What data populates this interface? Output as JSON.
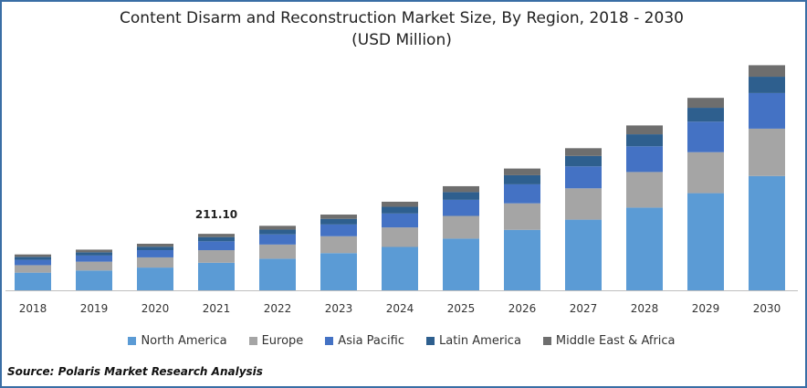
{
  "chart_data": {
    "type": "bar",
    "stacked": true,
    "title": "Content Disarm and Reconstruction Market Size, By Region, 2018 - 2030",
    "subtitle": "(USD Million)",
    "categories": [
      "2018",
      "2019",
      "2020",
      "2021",
      "2022",
      "2023",
      "2024",
      "2025",
      "2026",
      "2027",
      "2028",
      "2029",
      "2030"
    ],
    "series": [
      {
        "name": "North America",
        "color": "#5b9bd5",
        "values": [
          66,
          74,
          85,
          103,
          118,
          139,
          162,
          193,
          226,
          264,
          309,
          363,
          427
        ]
      },
      {
        "name": "Europe",
        "color": "#a5a5a5",
        "values": [
          28,
          33,
          38,
          47,
          53,
          63,
          73,
          85,
          99,
          117,
          133,
          153,
          177
        ]
      },
      {
        "name": "Asia Pacific",
        "color": "#4472c4",
        "values": [
          20,
          23,
          27,
          33,
          38,
          44,
          52,
          60,
          71,
          82,
          96,
          114,
          133
        ]
      },
      {
        "name": "Latin America",
        "color": "#2e5f8e",
        "values": [
          11,
          12,
          13,
          16,
          18,
          21,
          25,
          29,
          34,
          39,
          45,
          52,
          61
        ]
      },
      {
        "name": "Middle East & Africa",
        "color": "#6e6e6e",
        "values": [
          9,
          10,
          11,
          12,
          14,
          16,
          19,
          22,
          25,
          29,
          33,
          37,
          43
        ]
      }
    ],
    "annotations": [
      {
        "category": "2021",
        "text": "211.10"
      }
    ],
    "ylim": [
      0,
      880
    ],
    "xlabel": "",
    "ylabel": "",
    "grid": false,
    "legend_position": "bottom"
  },
  "source": "Source: Polaris Market Research Analysis"
}
